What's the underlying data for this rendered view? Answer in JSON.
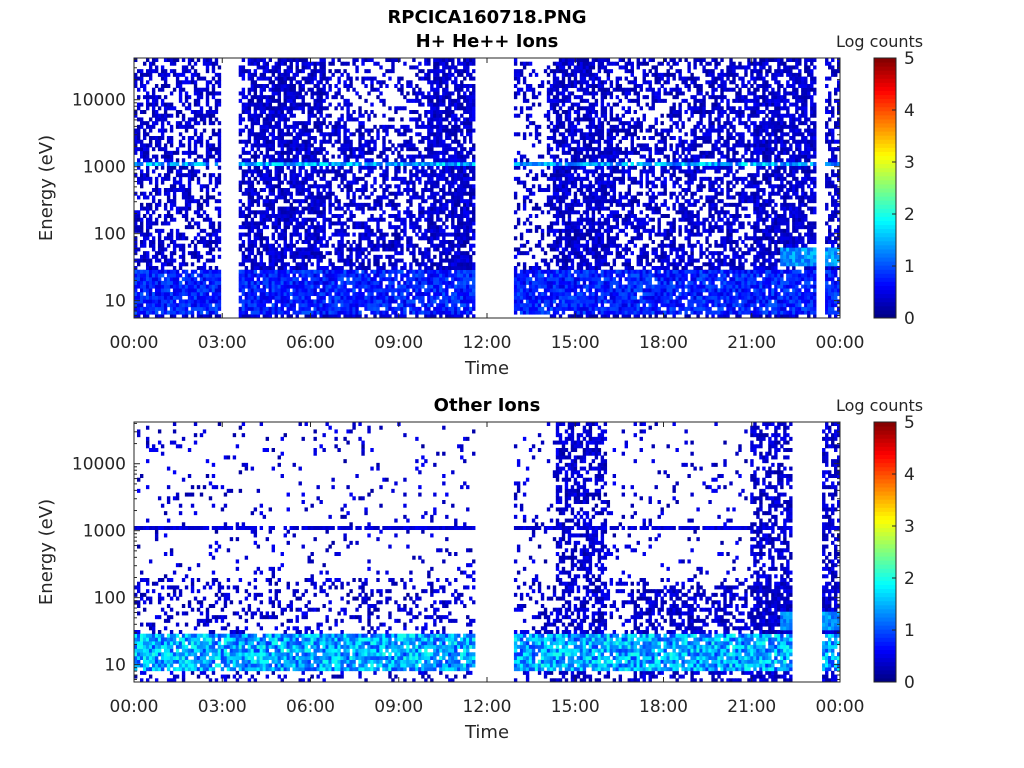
{
  "figure": {
    "title": "RPCICA160718.PNG",
    "colormap": "jet",
    "colorbar": {
      "label": "Log counts",
      "range": [
        0,
        5
      ],
      "ticks": [
        "0",
        "1",
        "2",
        "3",
        "4",
        "5"
      ]
    }
  },
  "chart_data": [
    {
      "type": "heatmap",
      "title": "H+ He++ Ions",
      "xlabel": "Time",
      "ylabel": "Energy (eV)",
      "x_ticks": [
        "00:00",
        "03:00",
        "06:00",
        "09:00",
        "12:00",
        "15:00",
        "18:00",
        "21:00",
        "00:00"
      ],
      "xlim_hours": [
        0,
        24
      ],
      "y_scale": "log",
      "y_ticks": [
        "10",
        "100",
        "1000",
        "10000"
      ],
      "y_tick_values": [
        10,
        100,
        1000,
        10000
      ],
      "ylim": [
        5.5,
        42000
      ],
      "color_range": [
        0,
        5
      ],
      "data_gaps_hours": [
        [
          11.6,
          12.95
        ],
        [
          3.0,
          3.6
        ],
        [
          23.2,
          23.5
        ]
      ],
      "features": [
        {
          "name": "line",
          "energy_eV": 1100,
          "level": 1.6
        },
        {
          "name": "low-energy band",
          "energy_range_eV": [
            6,
            30
          ],
          "level": 0.9
        },
        {
          "name": "enhanced band",
          "time_hours": [
            22.0,
            24.0
          ],
          "energy_range_eV": [
            35,
            60
          ],
          "level": 1.5
        }
      ]
    },
    {
      "type": "heatmap",
      "title": "Other Ions",
      "xlabel": "Time",
      "ylabel": "Energy (eV)",
      "x_ticks": [
        "00:00",
        "03:00",
        "06:00",
        "09:00",
        "12:00",
        "15:00",
        "18:00",
        "21:00",
        "00:00"
      ],
      "xlim_hours": [
        0,
        24
      ],
      "y_scale": "log",
      "y_ticks": [
        "10",
        "100",
        "1000",
        "10000"
      ],
      "y_tick_values": [
        10,
        100,
        1000,
        10000
      ],
      "ylim": [
        5.5,
        42000
      ],
      "color_range": [
        0,
        5
      ],
      "data_gaps_hours": [
        [
          11.6,
          12.95
        ],
        [
          22.4,
          23.4
        ]
      ],
      "features": [
        {
          "name": "line",
          "energy_eV": 1100,
          "level": 0.5
        },
        {
          "name": "low-energy band",
          "energy_range_eV": [
            8,
            30
          ],
          "level": 1.7
        },
        {
          "name": "high-energy bursts",
          "time_hours": [
            [
              14.3,
              16.1
            ],
            [
              21.0,
              22.4
            ],
            [
              23.4,
              24.0
            ]
          ]
        },
        {
          "name": "enhanced band",
          "time_hours": [
            22.0,
            24.0
          ],
          "energy_range_eV": [
            35,
            60
          ],
          "level": 1.5
        }
      ]
    }
  ]
}
